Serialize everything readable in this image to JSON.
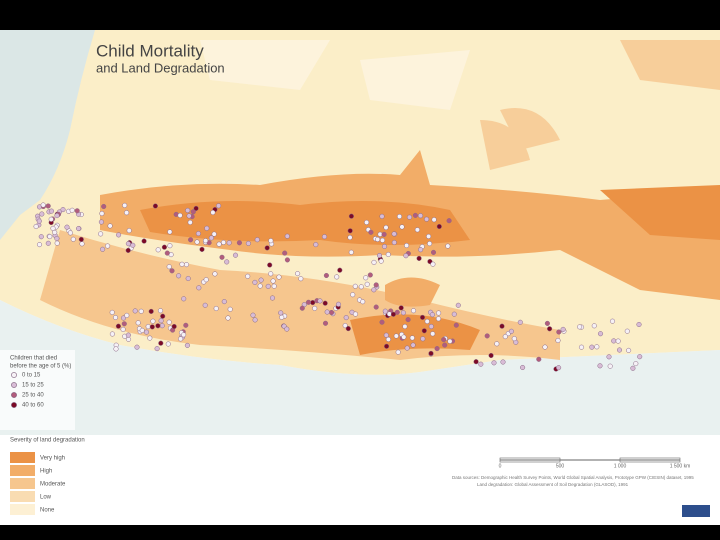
{
  "title": "Child Mortality",
  "subtitle": "and Land Degradation",
  "mortality_legend": {
    "title_lines": [
      "Children that died",
      "before the age of 5 (%)"
    ],
    "items": [
      {
        "label": "0 to 15",
        "color": "#f6f1f6"
      },
      {
        "label": "15 to 25",
        "color": "#d8bcd6"
      },
      {
        "label": "25 to 40",
        "color": "#b25c7c"
      },
      {
        "label": "40 to 60",
        "color": "#7c0a26"
      }
    ]
  },
  "degradation_legend": {
    "title": "Severity of land degradation",
    "items": [
      {
        "label": "Very high",
        "color": "#eb9245"
      },
      {
        "label": "High",
        "color": "#f2ad68"
      },
      {
        "label": "Moderate",
        "color": "#f6c68e"
      },
      {
        "label": "Low",
        "color": "#f9dcb2"
      },
      {
        "label": "None",
        "color": "#fdf0d4"
      }
    ]
  },
  "scale_bar": {
    "labels": [
      "0",
      "500",
      "1 000",
      "1 500 km"
    ]
  },
  "source": [
    "Data sources: Demographic Health Survey Points, World Global Spatial Analysis, Prototype GPW (CIESIN) dataset, 1995",
    "Land degradation: Global Assessment of Soil Degradation (GLASOD), 1991"
  ]
}
